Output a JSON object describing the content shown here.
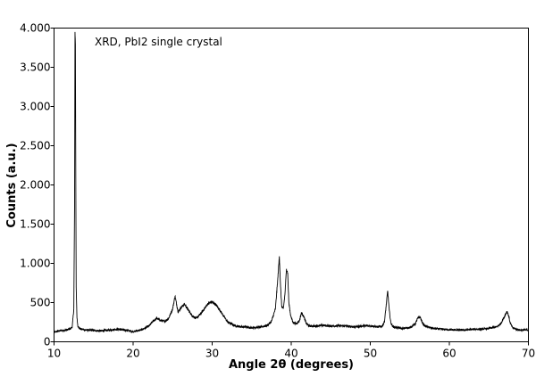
{
  "chart_data": {
    "type": "line",
    "title": "",
    "annotation": "XRD, PbI2 single crystal",
    "xlabel": "Angle 2θ (degrees)",
    "ylabel": "Counts (a.u.)",
    "xlim": [
      10,
      70
    ],
    "ylim": [
      0,
      4000
    ],
    "x_ticks": [
      10,
      20,
      30,
      40,
      50,
      60,
      70
    ],
    "x_tick_labels": [
      "10",
      "20",
      "30",
      "40",
      "50",
      "60",
      "70"
    ],
    "y_ticks": [
      0,
      500,
      1000,
      1500,
      2000,
      2500,
      3000,
      3500,
      4000
    ],
    "y_tick_labels": [
      "0",
      "500",
      "1.000",
      "1.500",
      "2.000",
      "2.500",
      "3.000",
      "3.500",
      "4.000"
    ],
    "grid": false,
    "line_color": "#000000",
    "series": [
      {
        "x": [
          10.0,
          10.5,
          11.0,
          11.5,
          12.0,
          12.3,
          12.5,
          12.6,
          12.65,
          12.7,
          12.75,
          12.8,
          12.9,
          13.0,
          13.2,
          13.5,
          14.0,
          15.0,
          16.0,
          17.0,
          18.0,
          19.0,
          20.0,
          21.0,
          22.0,
          22.5,
          23.0,
          23.5,
          24.0,
          24.5,
          25.0,
          25.3,
          25.5,
          25.7,
          26.0,
          26.5,
          27.0,
          27.5,
          28.0,
          28.5,
          29.0,
          29.5,
          30.0,
          30.5,
          31.0,
          31.5,
          32.0,
          33.0,
          34.0,
          35.0,
          36.0,
          37.0,
          37.5,
          38.0,
          38.3,
          38.5,
          38.65,
          38.8,
          39.0,
          39.2,
          39.4,
          39.55,
          39.7,
          39.9,
          40.2,
          40.6,
          41.0,
          41.3,
          41.6,
          41.8,
          42.0,
          42.4,
          43.0,
          44.0,
          45.0,
          46.0,
          47.0,
          48.0,
          49.0,
          50.0,
          51.0,
          51.5,
          51.8,
          52.0,
          52.2,
          52.4,
          52.6,
          52.9,
          53.5,
          54.0,
          55.0,
          55.7,
          56.0,
          56.3,
          56.5,
          56.8,
          57.2,
          58.0,
          59.0,
          60.0,
          61.0,
          62.0,
          63.0,
          64.0,
          65.0,
          66.0,
          66.5,
          67.0,
          67.3,
          67.5,
          67.7,
          68.0,
          68.5,
          69.0,
          70.0
        ],
        "y": [
          120,
          135,
          145,
          150,
          160,
          190,
          420,
          1800,
          3950,
          3800,
          2100,
          700,
          300,
          200,
          175,
          160,
          150,
          145,
          140,
          150,
          160,
          150,
          130,
          150,
          200,
          260,
          300,
          270,
          260,
          300,
          420,
          580,
          480,
          380,
          430,
          480,
          400,
          330,
          300,
          350,
          420,
          490,
          510,
          470,
          400,
          320,
          250,
          200,
          190,
          180,
          185,
          210,
          260,
          420,
          800,
          1090,
          700,
          450,
          420,
          600,
          930,
          880,
          500,
          350,
          250,
          230,
          260,
          370,
          320,
          260,
          220,
          200,
          200,
          210,
          200,
          205,
          200,
          190,
          200,
          205,
          190,
          200,
          260,
          450,
          650,
          400,
          240,
          190,
          180,
          170,
          180,
          230,
          300,
          320,
          260,
          210,
          190,
          170,
          160,
          155,
          150,
          150,
          160,
          160,
          170,
          190,
          230,
          330,
          390,
          330,
          240,
          180,
          160,
          150,
          150
        ]
      }
    ]
  }
}
